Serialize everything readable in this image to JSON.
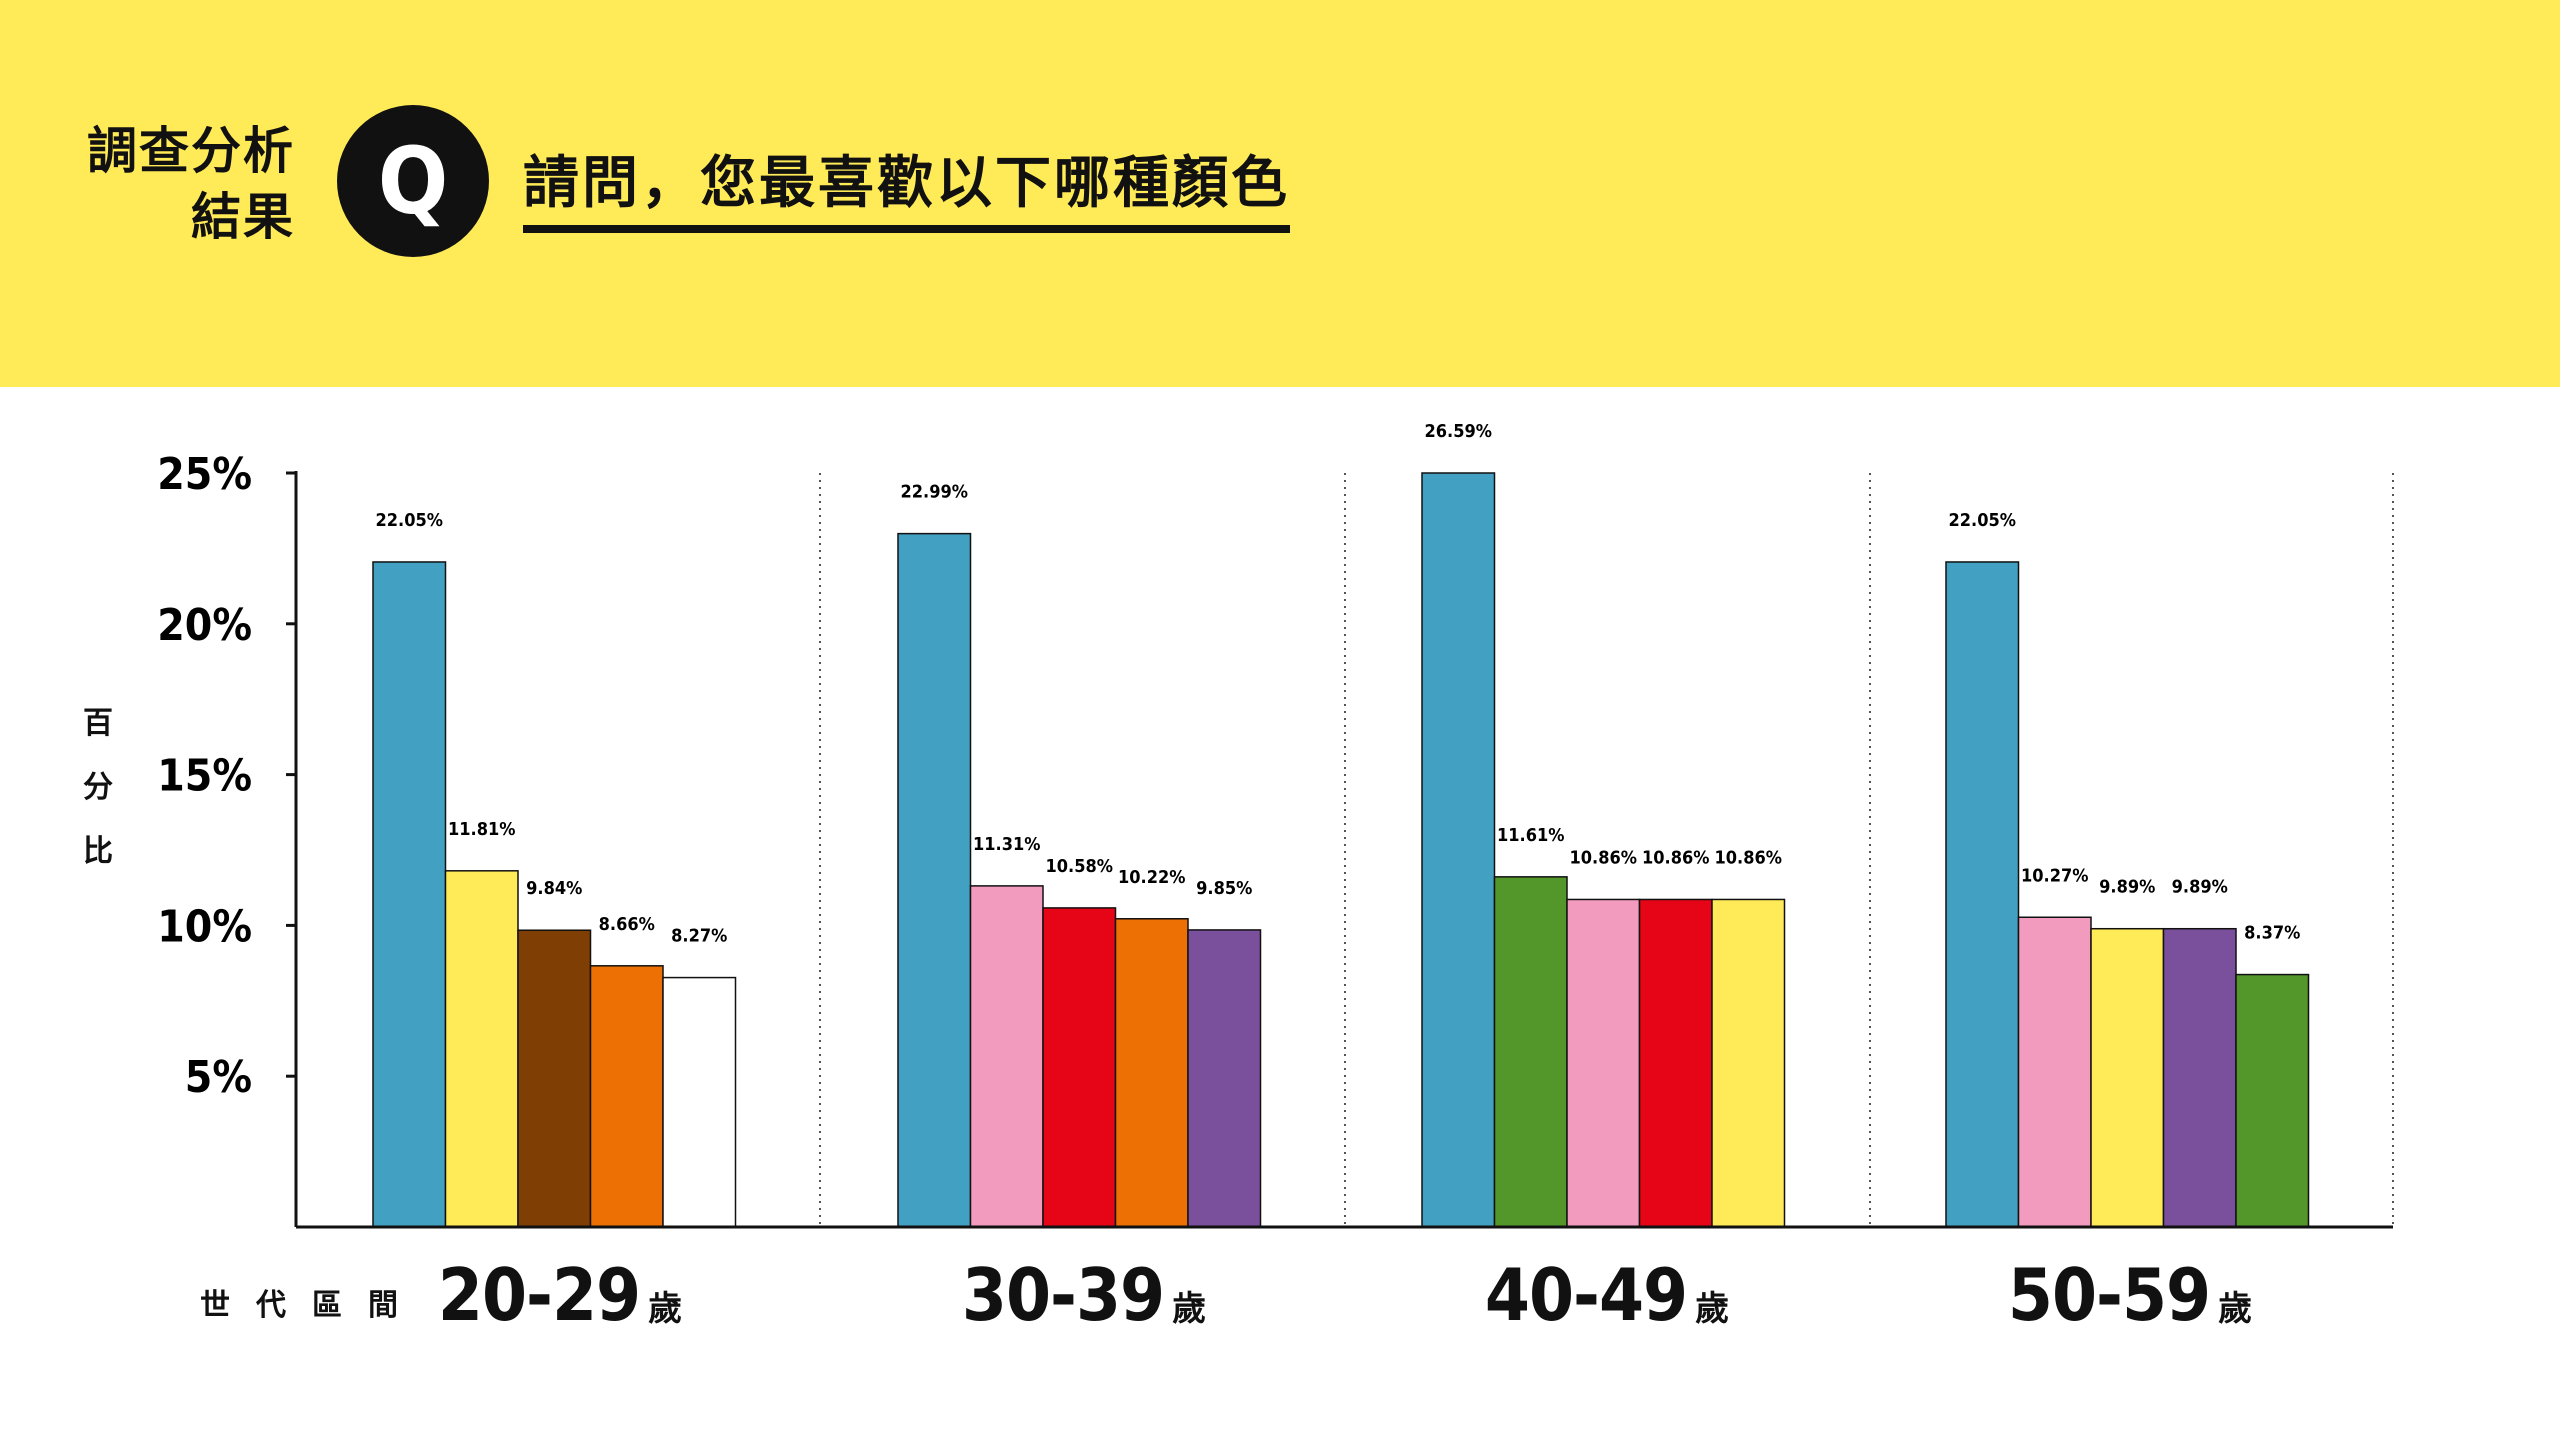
{
  "header": {
    "brand_line1": "調查分析",
    "brand_line2": "結果",
    "badge": "Q",
    "question": "請問，您最喜歡以下哪種顏色"
  },
  "axis": {
    "y_title_chars": [
      "百",
      "分",
      "比"
    ],
    "x_title": "世代區間",
    "age_suffix": "歲"
  },
  "chart_data": {
    "type": "bar",
    "title": "請問，您最喜歡以下哪種顏色",
    "xlabel": "世代區間",
    "ylabel": "百分比",
    "ylim": [
      0,
      25
    ],
    "yticks": [
      "5%",
      "10%",
      "15%",
      "20%",
      "25%"
    ],
    "grid": "dotted vertical separators between age groups",
    "groups": [
      {
        "name": "20-29",
        "bars": [
          {
            "value": 22.05,
            "label": "22.05%",
            "color": "#42a1c3"
          },
          {
            "value": 11.81,
            "label": "11.81%",
            "color": "#ffea57"
          },
          {
            "value": 9.84,
            "label": "9.84%",
            "color": "#7f3f04"
          },
          {
            "value": 8.66,
            "label": "8.66%",
            "color": "#ec7004"
          },
          {
            "value": 8.27,
            "label": "8.27%",
            "color": "#ffffff"
          }
        ]
      },
      {
        "name": "30-39",
        "bars": [
          {
            "value": 22.99,
            "label": "22.99%",
            "color": "#42a1c3"
          },
          {
            "value": 11.31,
            "label": "11.31%",
            "color": "#f29bbf"
          },
          {
            "value": 10.58,
            "label": "10.58%",
            "color": "#e60417"
          },
          {
            "value": 10.22,
            "label": "10.22%",
            "color": "#ec7004"
          },
          {
            "value": 9.85,
            "label": "9.85%",
            "color": "#7a509c"
          }
        ]
      },
      {
        "name": "40-49",
        "bars": [
          {
            "value": 26.59,
            "label": "26.59%",
            "color": "#42a1c3"
          },
          {
            "value": 11.61,
            "label": "11.61%",
            "color": "#53962a"
          },
          {
            "value": 10.86,
            "label": "10.86%",
            "color": "#f29bbf"
          },
          {
            "value": 10.86,
            "label": "10.86%",
            "color": "#e60417"
          },
          {
            "value": 10.86,
            "label": "10.86%",
            "color": "#ffea57"
          }
        ]
      },
      {
        "name": "50-59",
        "bars": [
          {
            "value": 22.05,
            "label": "22.05%",
            "color": "#42a1c3"
          },
          {
            "value": 10.27,
            "label": "10.27%",
            "color": "#f29bbf"
          },
          {
            "value": 9.89,
            "label": "9.89%",
            "color": "#ffea57"
          },
          {
            "value": 9.89,
            "label": "9.89%",
            "color": "#7a509c"
          },
          {
            "value": 8.37,
            "label": "8.37%",
            "color": "#53962a"
          }
        ]
      }
    ]
  }
}
